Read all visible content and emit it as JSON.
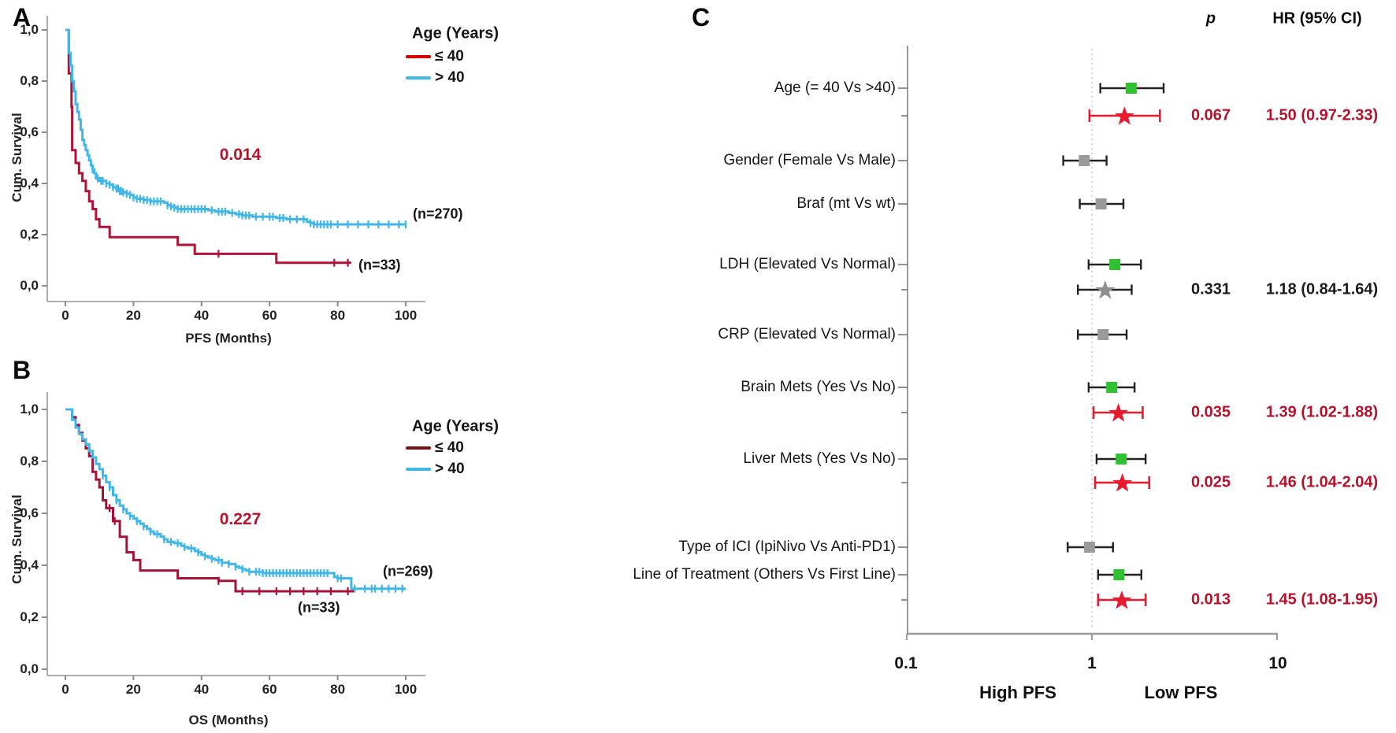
{
  "chart_data": [
    {
      "type": "line",
      "variant": "kaplan-meier-step",
      "panel_letter": "A",
      "xlabel": "PFS (Months)",
      "ylabel": "Cum. Survival",
      "x_ticks": [
        0,
        20,
        40,
        60,
        80,
        100
      ],
      "y_tick_values": [
        0,
        0.2,
        0.4,
        0.6,
        0.8,
        1.0
      ],
      "y_tick_labels": [
        "0,0",
        "0,2",
        "0,4",
        "0,6",
        "0,8",
        "1,0"
      ],
      "xlim": [
        0,
        100
      ],
      "ylim": [
        0,
        1
      ],
      "p_value": "0.014",
      "p_value_color": "#b5122b",
      "legend": {
        "title": "Age (Years)",
        "items": [
          {
            "label": "≤ 40",
            "color": "#d40000"
          },
          {
            "label": "> 40",
            "color": "#41b7e8"
          }
        ]
      },
      "series": [
        {
          "name": "≤ 40",
          "n_label": "(n=33)",
          "color": "#b31238",
          "steps": [
            [
              0,
              1.0
            ],
            [
              1,
              0.83
            ],
            [
              1.8,
              0.7
            ],
            [
              2,
              0.53
            ],
            [
              3,
              0.48
            ],
            [
              4,
              0.44
            ],
            [
              5,
              0.41
            ],
            [
              6,
              0.37
            ],
            [
              7,
              0.33
            ],
            [
              8,
              0.3
            ],
            [
              9,
              0.26
            ],
            [
              10,
              0.23
            ],
            [
              13,
              0.19
            ],
            [
              33,
              0.16
            ],
            [
              38,
              0.125
            ],
            [
              62,
              0.09
            ],
            [
              84,
              0.09
            ]
          ],
          "censor_months": [
            45,
            79,
            83
          ]
        },
        {
          "name": "> 40",
          "n_label": "(n=270)",
          "color": "#41b7e8",
          "steps": [
            [
              0,
              1.0
            ],
            [
              1,
              0.91
            ],
            [
              1.5,
              0.86
            ],
            [
              2,
              0.8
            ],
            [
              2.5,
              0.76
            ],
            [
              3,
              0.71
            ],
            [
              3.5,
              0.68
            ],
            [
              4,
              0.65
            ],
            [
              4.5,
              0.61
            ],
            [
              5,
              0.57
            ],
            [
              5.5,
              0.55
            ],
            [
              6,
              0.53
            ],
            [
              6.5,
              0.51
            ],
            [
              7,
              0.49
            ],
            [
              7.5,
              0.47
            ],
            [
              8,
              0.455
            ],
            [
              8.5,
              0.44
            ],
            [
              9,
              0.42
            ],
            [
              10,
              0.41
            ],
            [
              12,
              0.4
            ],
            [
              13,
              0.395
            ],
            [
              14,
              0.385
            ],
            [
              15,
              0.38
            ],
            [
              16,
              0.37
            ],
            [
              17,
              0.365
            ],
            [
              18,
              0.36
            ],
            [
              19,
              0.355
            ],
            [
              20,
              0.345
            ],
            [
              21,
              0.34
            ],
            [
              23,
              0.335
            ],
            [
              25,
              0.33
            ],
            [
              29,
              0.325
            ],
            [
              30,
              0.315
            ],
            [
              31,
              0.31
            ],
            [
              32,
              0.305
            ],
            [
              33,
              0.3
            ],
            [
              42,
              0.295
            ],
            [
              44,
              0.29
            ],
            [
              48,
              0.285
            ],
            [
              50,
              0.28
            ],
            [
              52,
              0.275
            ],
            [
              55,
              0.27
            ],
            [
              62,
              0.265
            ],
            [
              65,
              0.26
            ],
            [
              71,
              0.25
            ],
            [
              72,
              0.245
            ],
            [
              73,
              0.24
            ],
            [
              100,
              0.24
            ]
          ],
          "censor_months": [
            8,
            9.5,
            10.5,
            11,
            12,
            13,
            14,
            15,
            15.5,
            16,
            16.5,
            17,
            18,
            19,
            20,
            21,
            22,
            23,
            24,
            25,
            26,
            27,
            28,
            30,
            31,
            32,
            33,
            34,
            35,
            36,
            37,
            38,
            39,
            40,
            41,
            43,
            45,
            46,
            47,
            49,
            51,
            52,
            53,
            54,
            56,
            58,
            60,
            61,
            63,
            64,
            66,
            68,
            70,
            72,
            73,
            74,
            75,
            76,
            77,
            78,
            80,
            83,
            86,
            89,
            92,
            95,
            98,
            100
          ]
        }
      ]
    },
    {
      "type": "line",
      "variant": "kaplan-meier-step",
      "panel_letter": "B",
      "xlabel": "OS (Months)",
      "ylabel": "Cum. Survival",
      "x_ticks": [
        0,
        20,
        40,
        60,
        80,
        100
      ],
      "y_tick_values": [
        0,
        0.2,
        0.4,
        0.6,
        0.8,
        1.0
      ],
      "y_tick_labels": [
        "0,0",
        "0,2",
        "0,4",
        "0,6",
        "0,8",
        "1,0"
      ],
      "xlim": [
        0,
        100
      ],
      "ylim": [
        0,
        1
      ],
      "p_value": "0.227",
      "p_value_color": "#b5122b",
      "legend": {
        "title": "Age (Years)",
        "items": [
          {
            "label": "≤ 40",
            "color": "#7c1113"
          },
          {
            "label": "> 40",
            "color": "#41b7e8"
          }
        ]
      },
      "series": [
        {
          "name": "≤ 40",
          "n_label": "(n=33)",
          "color": "#a41238",
          "steps": [
            [
              0,
              1.0
            ],
            [
              2,
              0.97
            ],
            [
              3,
              0.94
            ],
            [
              4,
              0.91
            ],
            [
              5,
              0.88
            ],
            [
              6,
              0.85
            ],
            [
              7,
              0.82
            ],
            [
              8,
              0.76
            ],
            [
              9,
              0.73
            ],
            [
              10,
              0.7
            ],
            [
              11,
              0.65
            ],
            [
              12,
              0.62
            ],
            [
              14,
              0.57
            ],
            [
              16,
              0.51
            ],
            [
              18,
              0.45
            ],
            [
              20,
              0.42
            ],
            [
              22,
              0.38
            ],
            [
              33,
              0.35
            ],
            [
              45,
              0.34
            ],
            [
              50,
              0.3
            ],
            [
              85,
              0.3
            ]
          ],
          "censor_months": [
            13,
            14.5,
            45,
            52,
            57,
            62,
            66,
            70,
            74,
            78,
            83
          ]
        },
        {
          "name": "> 40",
          "n_label": "(n=269)",
          "color": "#41b7e8",
          "steps": [
            [
              0,
              1.0
            ],
            [
              2,
              0.96
            ],
            [
              3,
              0.93
            ],
            [
              4,
              0.905
            ],
            [
              5,
              0.885
            ],
            [
              6,
              0.865
            ],
            [
              7,
              0.84
            ],
            [
              8,
              0.815
            ],
            [
              9,
              0.79
            ],
            [
              10,
              0.77
            ],
            [
              11,
              0.745
            ],
            [
              12,
              0.72
            ],
            [
              13,
              0.7
            ],
            [
              14,
              0.67
            ],
            [
              15,
              0.65
            ],
            [
              16,
              0.63
            ],
            [
              17,
              0.615
            ],
            [
              18,
              0.6
            ],
            [
              19,
              0.59
            ],
            [
              20,
              0.58
            ],
            [
              21,
              0.57
            ],
            [
              22,
              0.56
            ],
            [
              23,
              0.55
            ],
            [
              24,
              0.54
            ],
            [
              25,
              0.53
            ],
            [
              26,
              0.52
            ],
            [
              28,
              0.51
            ],
            [
              29,
              0.5
            ],
            [
              30,
              0.49
            ],
            [
              32,
              0.485
            ],
            [
              34,
              0.475
            ],
            [
              35,
              0.47
            ],
            [
              36,
              0.465
            ],
            [
              38,
              0.455
            ],
            [
              39,
              0.45
            ],
            [
              40,
              0.44
            ],
            [
              41,
              0.435
            ],
            [
              42,
              0.43
            ],
            [
              43,
              0.425
            ],
            [
              44,
              0.42
            ],
            [
              46,
              0.41
            ],
            [
              48,
              0.405
            ],
            [
              50,
              0.395
            ],
            [
              51,
              0.39
            ],
            [
              52,
              0.385
            ],
            [
              53,
              0.38
            ],
            [
              54,
              0.375
            ],
            [
              58,
              0.37
            ],
            [
              78,
              0.37
            ],
            [
              79,
              0.355
            ],
            [
              80,
              0.35
            ],
            [
              84,
              0.31
            ],
            [
              100,
              0.31
            ]
          ],
          "censor_months": [
            11,
            13,
            15,
            17,
            19,
            21,
            23,
            25,
            27,
            29,
            31,
            33,
            35,
            37,
            39,
            41,
            43,
            45,
            46,
            48,
            50,
            52,
            54,
            56,
            57,
            58,
            59,
            60,
            61,
            62,
            63,
            64,
            65,
            66,
            67,
            68,
            69,
            70,
            71,
            72,
            73,
            74,
            75,
            76,
            77,
            80,
            81,
            85,
            88,
            90,
            91,
            93,
            95,
            97,
            99
          ]
        }
      ]
    },
    {
      "type": "forest",
      "panel_letter": "C",
      "col_headers": {
        "p": "p",
        "hr": "HR (95% CI)"
      },
      "axis": {
        "scale": "log",
        "ticks": [
          0.1,
          1,
          10
        ],
        "tick_labels": [
          "0.1",
          "1",
          "10"
        ],
        "ref_line": 1,
        "left_label": "High PFS",
        "right_label": "Low PFS"
      },
      "rows": [
        {
          "label": "Age (= 40 Vs >40)",
          "estimates": [
            {
              "marker": "square",
              "marker_color": "#2fc12f",
              "ci_color": "#222222",
              "hr": 1.63,
              "lo": 1.11,
              "hi": 2.44
            },
            {
              "marker": "star",
              "marker_color": "#ea1a2e",
              "ci_color": "#ea1a2e",
              "hr": 1.5,
              "lo": 0.97,
              "hi": 2.33,
              "p": "0.067",
              "hr_text": "1.50 (0.97-2.33)",
              "text_color": "#b5122b"
            }
          ]
        },
        {
          "label": "Gender (Female Vs Male)",
          "estimates": [
            {
              "marker": "square",
              "marker_color": "#9a9a9a",
              "ci_color": "#222222",
              "hr": 0.91,
              "lo": 0.7,
              "hi": 1.2
            }
          ]
        },
        {
          "label": "Braf (mt Vs wt)",
          "estimates": [
            {
              "marker": "square",
              "marker_color": "#9a9a9a",
              "ci_color": "#222222",
              "hr": 1.12,
              "lo": 0.86,
              "hi": 1.48
            }
          ]
        },
        {
          "label": "LDH (Elevated Vs Normal)",
          "estimates": [
            {
              "marker": "square",
              "marker_color": "#2fc12f",
              "ci_color": "#222222",
              "hr": 1.33,
              "lo": 0.96,
              "hi": 1.84
            },
            {
              "marker": "star",
              "marker_color": "#8f8f8f",
              "ci_color": "#222222",
              "hr": 1.18,
              "lo": 0.84,
              "hi": 1.64,
              "p": "0.331",
              "hr_text": "1.18 (0.84-1.64)",
              "text_color": "#1a1a1a"
            }
          ]
        },
        {
          "label": "CRP (Elevated Vs Normal)",
          "estimates": [
            {
              "marker": "square",
              "marker_color": "#9a9a9a",
              "ci_color": "#222222",
              "hr": 1.15,
              "lo": 0.84,
              "hi": 1.54
            }
          ]
        },
        {
          "label": "Brain Mets (Yes Vs No)",
          "estimates": [
            {
              "marker": "square",
              "marker_color": "#2fc12f",
              "ci_color": "#222222",
              "hr": 1.28,
              "lo": 0.96,
              "hi": 1.7
            },
            {
              "marker": "star",
              "marker_color": "#ea1a2e",
              "ci_color": "#ea1a2e",
              "hr": 1.39,
              "lo": 1.02,
              "hi": 1.88,
              "p": "0.035",
              "hr_text": "1.39 (1.02-1.88)",
              "text_color": "#b5122b"
            }
          ]
        },
        {
          "label": "Liver Mets (Yes Vs No)",
          "estimates": [
            {
              "marker": "square",
              "marker_color": "#2fc12f",
              "ci_color": "#222222",
              "hr": 1.44,
              "lo": 1.06,
              "hi": 1.95
            },
            {
              "marker": "star",
              "marker_color": "#ea1a2e",
              "ci_color": "#ea1a2e",
              "hr": 1.46,
              "lo": 1.04,
              "hi": 2.04,
              "p": "0.025",
              "hr_text": "1.46 (1.04-2.04)",
              "text_color": "#b5122b"
            }
          ]
        },
        {
          "label": "Type of ICI (IpiNivo Vs Anti-PD1)",
          "estimates": [
            {
              "marker": "square",
              "marker_color": "#9a9a9a",
              "ci_color": "#222222",
              "hr": 0.97,
              "lo": 0.74,
              "hi": 1.3
            }
          ]
        },
        {
          "label": "Line of Treatment (Others Vs First Line)",
          "estimates": [
            {
              "marker": "square",
              "marker_color": "#2fc12f",
              "ci_color": "#222222",
              "hr": 1.4,
              "lo": 1.08,
              "hi": 1.85
            },
            {
              "marker": "star",
              "marker_color": "#ea1a2e",
              "ci_color": "#ea1a2e",
              "hr": 1.45,
              "lo": 1.08,
              "hi": 1.95,
              "p": "0.013",
              "hr_text": "1.45 (1.08-1.95)",
              "text_color": "#b5122b"
            }
          ]
        }
      ]
    }
  ]
}
